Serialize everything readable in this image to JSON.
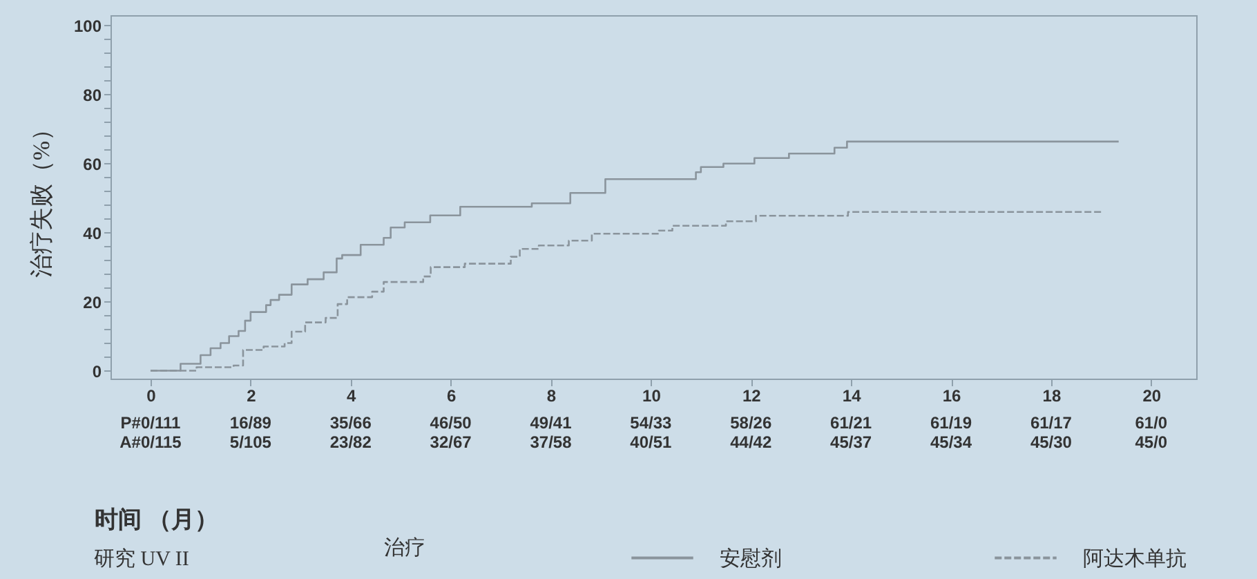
{
  "chart_data": {
    "type": "step",
    "xlabel": "时间 （月）",
    "ylabel": "治疗失败（%）",
    "legend_title": "治疗",
    "legend": "bottom",
    "annotations": [
      "P#0/111 16/89 35/66 46/50 49/41 54/33 58/26 61/21 61/19 61/17 61/0",
      "A#0/115 5/105 23/82 32/67 37/58 40/51 44/42 45/37 45/34 45/30 45/0",
      "研究 UV II"
    ],
    "xlim": [
      -0.8,
      20.9
    ],
    "ylim": [
      -2.3,
      103
    ],
    "xticks": [
      0,
      2,
      4,
      6,
      8,
      10,
      12,
      14,
      16,
      18,
      20
    ],
    "yticks": [
      0,
      {
        "value": 4,
        "label": null
      },
      {
        "value": 8,
        "label": null
      },
      {
        "value": 12,
        "label": null
      },
      {
        "value": 16,
        "label": null
      },
      20,
      {
        "value": 24,
        "label": null
      },
      {
        "value": 28,
        "label": null
      },
      {
        "value": 32,
        "label": null
      },
      {
        "value": 36,
        "label": null
      },
      40,
      {
        "value": 44,
        "label": null
      },
      {
        "value": 48,
        "label": null
      },
      {
        "value": 52,
        "label": null
      },
      {
        "value": 56,
        "label": null
      },
      60,
      {
        "value": 64,
        "label": null
      },
      {
        "value": 68,
        "label": null
      },
      {
        "value": 72,
        "label": null
      },
      {
        "value": 76,
        "label": null
      },
      80,
      {
        "value": 84,
        "label": null
      },
      {
        "value": 88,
        "label": null
      },
      {
        "value": 92,
        "label": null
      },
      {
        "value": 96,
        "label": null
      },
      100
    ],
    "series": [
      {
        "name": "安慰剂",
        "color": "#8a949c",
        "line_style": "solid",
        "x": [
          0,
          0.6,
          1.0,
          1.2,
          1.4,
          1.57,
          1.76,
          1.89,
          2.0,
          2.31,
          2.4,
          2.57,
          2.82,
          3.14,
          3.46,
          3.72,
          3.83,
          4.2,
          4.66,
          4.8,
          5.08,
          5.59,
          6.19,
          7.62,
          8.39,
          9.09,
          10.9,
          11.0,
          11.45,
          12.07,
          12.76,
          13.67,
          13.92,
          19.35
        ],
        "values": [
          0,
          2,
          4.5,
          6.5,
          8,
          10,
          11.5,
          14.5,
          17,
          19,
          20.5,
          22,
          25,
          26.5,
          28.5,
          32.5,
          33.5,
          36.5,
          38.5,
          41.5,
          43,
          45,
          47.5,
          48.5,
          51.5,
          55.5,
          57.5,
          59,
          60,
          61.6,
          62.9,
          64.6,
          66.4,
          66.4
        ]
      },
      {
        "name": "阿达木单抗",
        "color": "#8a949c",
        "line_style": "dashed",
        "x": [
          0,
          0.92,
          1.66,
          1.85,
          2.26,
          2.68,
          2.82,
          3.09,
          3.5,
          3.74,
          3.93,
          4.43,
          4.66,
          5.45,
          5.6,
          6.28,
          7.2,
          7.38,
          7.76,
          8.36,
          8.82,
          10.16,
          10.43,
          11.5,
          12.1,
          13.94,
          19.02
        ],
        "values": [
          0,
          1,
          1.5,
          6,
          7,
          8,
          11.3,
          14,
          15.3,
          19.3,
          21.3,
          22.9,
          25.7,
          27.3,
          30,
          31,
          33,
          35.3,
          36.3,
          37.7,
          39.7,
          40.6,
          42,
          43.3,
          44.9,
          46,
          46
        ]
      }
    ]
  }
}
